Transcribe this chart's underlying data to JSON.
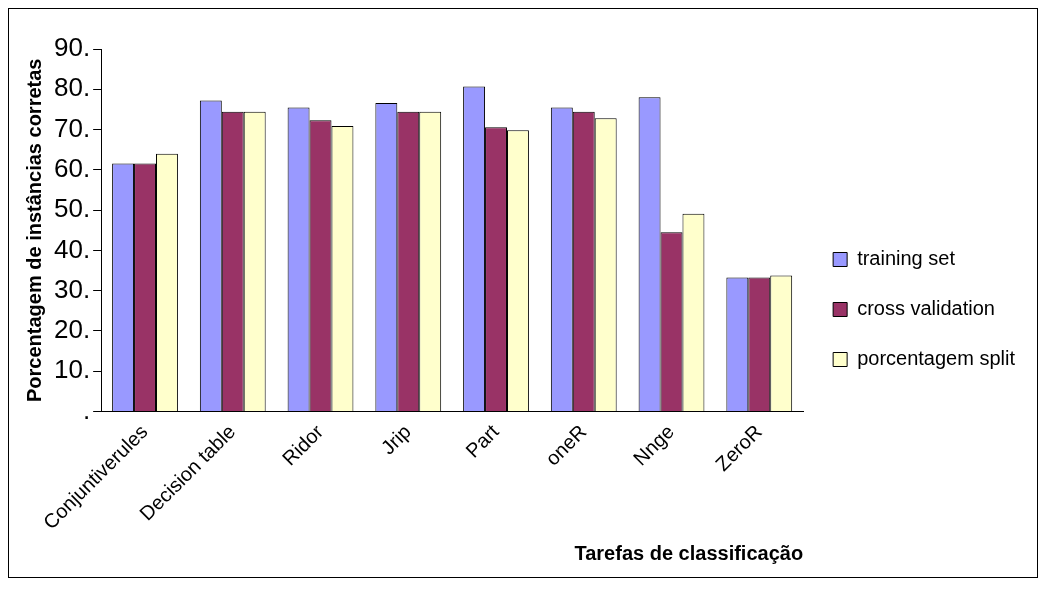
{
  "chart_data": {
    "type": "bar",
    "xlabel": "Tarefas de classificação",
    "ylabel": "Porcentagem de instâncias corretas",
    "categories": [
      "Conjuntiverules",
      "Decision table",
      "Ridor",
      "Jrip",
      "Part",
      "oneR",
      "Nnge",
      "ZeroR"
    ],
    "series": [
      {
        "name": "training set",
        "color": "#9999ff",
        "values": [
          61.6,
          77.2,
          75.5,
          76.6,
          80.7,
          75.5,
          78,
          33.3
        ]
      },
      {
        "name": "cross validation",
        "color": "#993366",
        "values": [
          61.6,
          74.4,
          72.3,
          74.4,
          70.6,
          74.4,
          44.5,
          33.3
        ]
      },
      {
        "name": "porcentagem split",
        "color": "#ffffcc",
        "values": [
          64,
          74.4,
          70.9,
          74.4,
          69.8,
          72.8,
          49.1,
          33.8
        ]
      }
    ],
    "ylim": [
      0,
      90
    ],
    "yticks": [
      {
        "value": 0,
        "label": "."
      },
      {
        "value": 10,
        "label": "10."
      },
      {
        "value": 20,
        "label": "20."
      },
      {
        "value": 30,
        "label": "30."
      },
      {
        "value": 40,
        "label": "40."
      },
      {
        "value": 50,
        "label": "50."
      },
      {
        "value": 60,
        "label": "60."
      },
      {
        "value": 70,
        "label": "70."
      },
      {
        "value": 80,
        "label": "80."
      },
      {
        "value": 90,
        "label": "90."
      }
    ],
    "grid": false,
    "legend": "right"
  }
}
